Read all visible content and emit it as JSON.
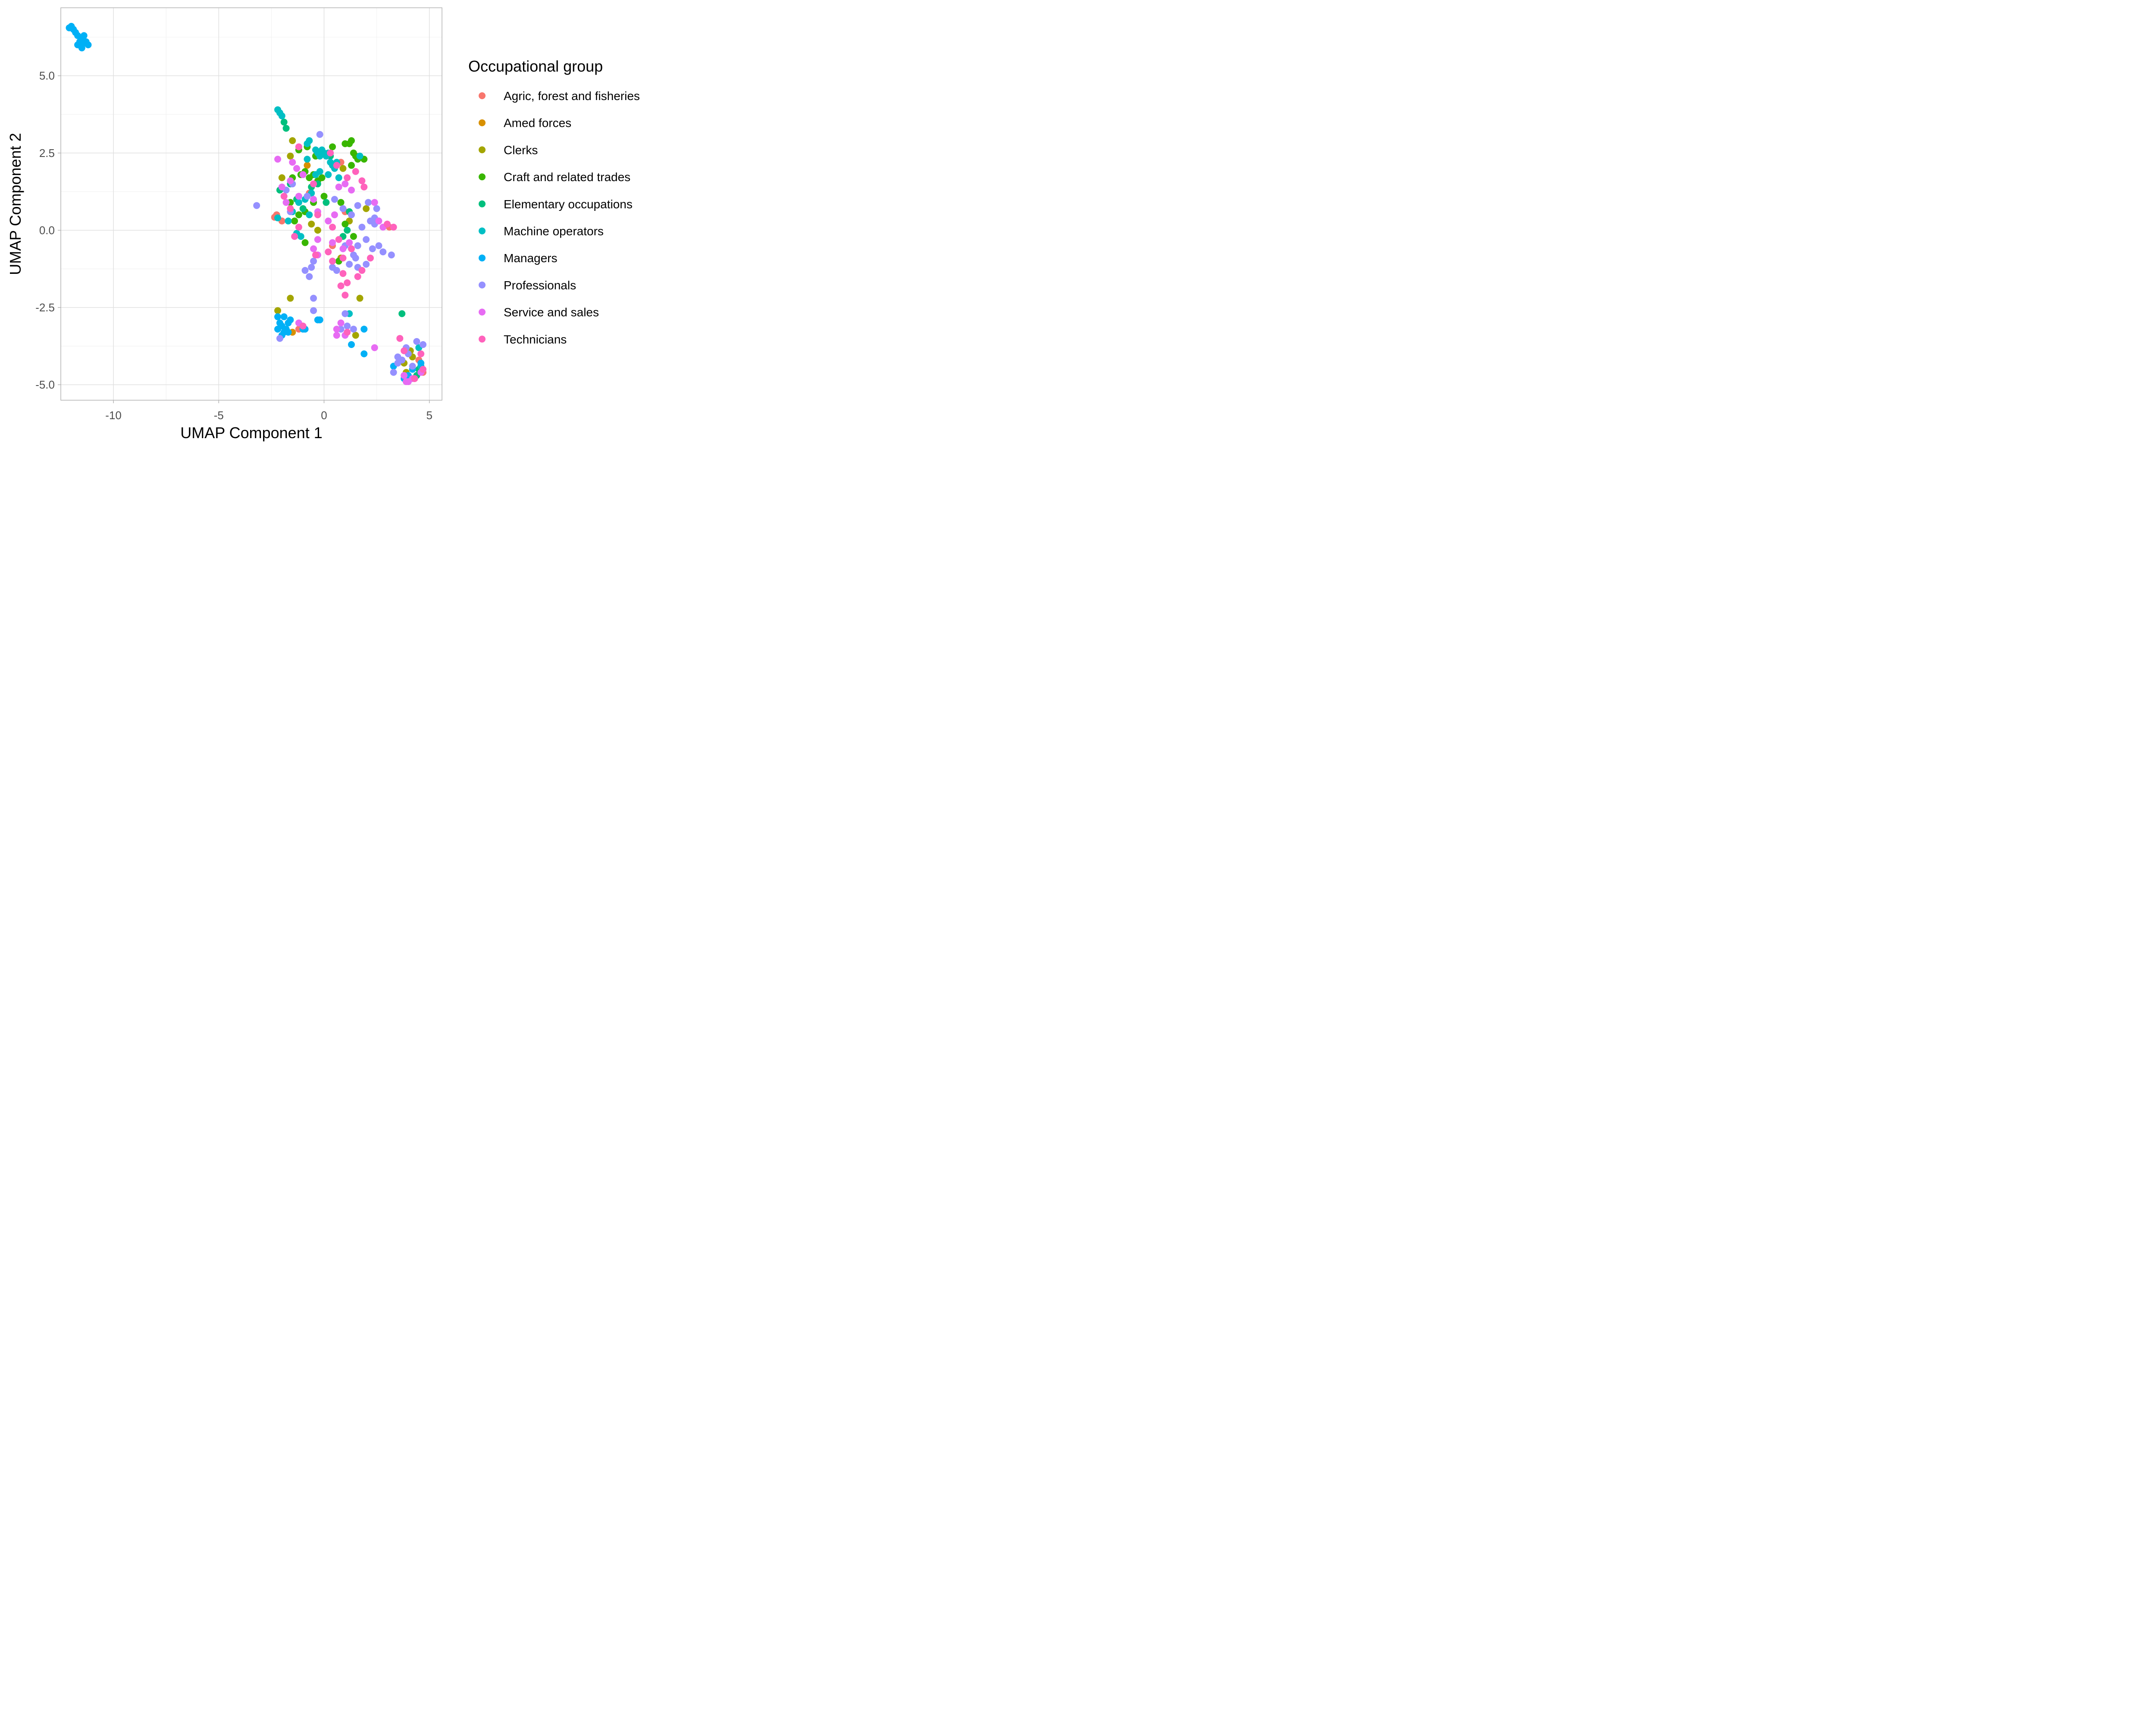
{
  "chart_data": {
    "type": "scatter",
    "xlabel": "UMAP Component 1",
    "ylabel": "UMAP Component 2",
    "xlim": [
      -12.5,
      5.6
    ],
    "ylim": [
      -5.5,
      7.2
    ],
    "x_ticks": [
      -10,
      -5,
      0,
      5
    ],
    "x_tick_labels": [
      "-10",
      "-5",
      "0",
      "5"
    ],
    "y_ticks": [
      -5,
      -2.5,
      0,
      2.5,
      5
    ],
    "y_tick_labels": [
      "-5.0",
      "-2.5",
      "0.0",
      "2.5",
      "5.0"
    ],
    "grid": true,
    "legend": {
      "title": "Occupational group",
      "position": "right"
    },
    "series": [
      {
        "name": "Agric, forest and fisheries",
        "color": "#F8766D",
        "points": [
          [
            -2.3,
            0.45
          ],
          [
            -2.25,
            0.5
          ],
          [
            -2.35,
            0.42
          ],
          [
            -2.0,
            0.3
          ],
          [
            -0.7,
            1.2
          ],
          [
            0.8,
            2.2
          ],
          [
            1.0,
            0.6
          ],
          [
            3.1,
            0.1
          ],
          [
            4.5,
            -4.2
          ],
          [
            4.6,
            -4.4
          ],
          [
            4.7,
            -4.6
          ],
          [
            4.3,
            -4.8
          ],
          [
            0.4,
            -0.5
          ],
          [
            -1.2,
            -3.2
          ]
        ]
      },
      {
        "name": "Amed forces",
        "color": "#D89000",
        "points": [
          [
            -0.8,
            2.1
          ],
          [
            -1.5,
            -3.3
          ]
        ]
      },
      {
        "name": "Clerks",
        "color": "#A3A500",
        "points": [
          [
            -1.5,
            2.9
          ],
          [
            -1.6,
            2.4
          ],
          [
            -2.0,
            1.7
          ],
          [
            -0.3,
            0.0
          ],
          [
            0.9,
            2.0
          ],
          [
            1.2,
            0.3
          ],
          [
            0.8,
            -0.9
          ],
          [
            2.0,
            0.7
          ],
          [
            -1.6,
            -2.2
          ],
          [
            -2.2,
            -2.6
          ],
          [
            1.7,
            -2.2
          ],
          [
            1.5,
            -3.4
          ],
          [
            3.8,
            -4.3
          ],
          [
            4.1,
            -3.9
          ],
          [
            4.2,
            -4.1
          ],
          [
            3.9,
            -4.6
          ],
          [
            -0.6,
            0.2
          ]
        ]
      },
      {
        "name": "Craft and related trades",
        "color": "#39B600",
        "points": [
          [
            -1.2,
            2.6
          ],
          [
            -0.8,
            2.7
          ],
          [
            -0.4,
            2.4
          ],
          [
            0.4,
            2.7
          ],
          [
            1.0,
            2.8
          ],
          [
            1.3,
            2.9
          ],
          [
            1.4,
            2.5
          ],
          [
            1.6,
            2.3
          ],
          [
            1.9,
            2.3
          ],
          [
            1.3,
            2.1
          ],
          [
            -0.9,
            1.9
          ],
          [
            -0.5,
            1.8
          ],
          [
            -0.1,
            1.7
          ],
          [
            -0.3,
            1.6
          ],
          [
            -0.7,
            1.7
          ],
          [
            -1.1,
            1.8
          ],
          [
            -1.5,
            1.7
          ],
          [
            0.0,
            1.1
          ],
          [
            -0.5,
            0.9
          ],
          [
            0.8,
            0.9
          ],
          [
            -1.2,
            0.5
          ],
          [
            -1.4,
            0.3
          ],
          [
            -0.9,
            0.6
          ],
          [
            1.4,
            -0.2
          ],
          [
            -0.9,
            -0.4
          ],
          [
            1.0,
            0.2
          ],
          [
            0.7,
            -1.0
          ],
          [
            -1.6,
            0.9
          ],
          [
            1.2,
            2.8
          ],
          [
            1.5,
            2.4
          ]
        ]
      },
      {
        "name": "Elementary occupations",
        "color": "#00BF7D",
        "points": [
          [
            -1.9,
            3.5
          ],
          [
            -1.8,
            3.3
          ],
          [
            -2.1,
            1.3
          ],
          [
            -1.6,
            1.5
          ],
          [
            -1.3,
            1.0
          ],
          [
            -0.6,
            1.4
          ],
          [
            -0.3,
            1.5
          ],
          [
            0.1,
            0.9
          ],
          [
            -1.0,
            0.7
          ],
          [
            1.2,
            0.6
          ],
          [
            1.1,
            0.0
          ],
          [
            0.9,
            -0.2
          ],
          [
            -0.2,
            2.5
          ],
          [
            0.3,
            2.4
          ],
          [
            3.7,
            -2.7
          ],
          [
            4.5,
            -4.5
          ],
          [
            4.4,
            -4.7
          ]
        ]
      },
      {
        "name": "Machine operators",
        "color": "#00BFC4",
        "points": [
          [
            -2.2,
            3.9
          ],
          [
            -2.1,
            3.8
          ],
          [
            -2.0,
            3.7
          ],
          [
            -0.7,
            2.9
          ],
          [
            -0.8,
            2.8
          ],
          [
            -0.4,
            2.6
          ],
          [
            -0.3,
            2.5
          ],
          [
            -0.2,
            2.4
          ],
          [
            -0.1,
            2.6
          ],
          [
            0.0,
            2.5
          ],
          [
            0.1,
            2.4
          ],
          [
            0.2,
            2.5
          ],
          [
            0.3,
            2.2
          ],
          [
            0.4,
            2.1
          ],
          [
            0.5,
            2.0
          ],
          [
            0.6,
            2.2
          ],
          [
            -0.4,
            1.8
          ],
          [
            -0.2,
            1.9
          ],
          [
            0.2,
            1.8
          ],
          [
            0.7,
            1.7
          ],
          [
            -0.6,
            1.2
          ],
          [
            -0.9,
            1.0
          ],
          [
            -1.2,
            0.9
          ],
          [
            -1.5,
            0.6
          ],
          [
            -1.7,
            0.3
          ],
          [
            -2.2,
            0.4
          ],
          [
            -1.3,
            -0.1
          ],
          [
            -1.1,
            -0.2
          ],
          [
            -0.7,
            0.5
          ],
          [
            1.2,
            -2.7
          ],
          [
            4.5,
            -3.8
          ],
          [
            4.6,
            -4.4
          ],
          [
            1.7,
            2.4
          ],
          [
            -0.8,
            2.3
          ]
        ]
      },
      {
        "name": "Managers",
        "color": "#00B0F6",
        "points": [
          [
            -12.0,
            6.6
          ],
          [
            -11.9,
            6.5
          ],
          [
            -11.8,
            6.4
          ],
          [
            -11.7,
            6.3
          ],
          [
            -11.6,
            6.1
          ],
          [
            -11.5,
            6.0
          ],
          [
            -11.4,
            6.3
          ],
          [
            -11.3,
            6.1
          ],
          [
            -11.2,
            6.0
          ],
          [
            -11.5,
            5.9
          ],
          [
            -11.7,
            6.0
          ],
          [
            -12.1,
            6.55
          ],
          [
            -11.45,
            6.2
          ],
          [
            -2.2,
            -2.8
          ],
          [
            -2.1,
            -3.0
          ],
          [
            -2.0,
            -3.1
          ],
          [
            -1.9,
            -2.8
          ],
          [
            -1.8,
            -3.2
          ],
          [
            -1.7,
            -3.0
          ],
          [
            -1.6,
            -2.9
          ],
          [
            -1.9,
            -3.3
          ],
          [
            -2.2,
            -3.2
          ],
          [
            -2.0,
            -3.4
          ],
          [
            -1.7,
            -3.3
          ],
          [
            -0.9,
            -3.2
          ],
          [
            -1.0,
            -3.2
          ],
          [
            -0.3,
            -2.9
          ],
          [
            -0.2,
            -2.9
          ],
          [
            1.3,
            -3.7
          ],
          [
            1.9,
            -4.0
          ],
          [
            1.9,
            -3.2
          ],
          [
            3.3,
            -4.4
          ],
          [
            3.8,
            -4.8
          ],
          [
            4.0,
            -4.7
          ],
          [
            4.2,
            -4.5
          ],
          [
            4.6,
            -4.3
          ]
        ]
      },
      {
        "name": "Professionals",
        "color": "#9590FF",
        "points": [
          [
            -3.2,
            0.8
          ],
          [
            -0.2,
            3.1
          ],
          [
            -1.5,
            1.5
          ],
          [
            -1.8,
            1.3
          ],
          [
            -1.6,
            0.6
          ],
          [
            -0.8,
            1.1
          ],
          [
            0.5,
            1.0
          ],
          [
            0.9,
            0.7
          ],
          [
            1.3,
            0.5
          ],
          [
            1.6,
            0.8
          ],
          [
            2.1,
            0.9
          ],
          [
            2.5,
            0.7
          ],
          [
            2.4,
            0.4
          ],
          [
            2.2,
            0.3
          ],
          [
            1.8,
            0.1
          ],
          [
            2.0,
            -0.3
          ],
          [
            1.6,
            -0.5
          ],
          [
            1.4,
            -0.8
          ],
          [
            1.2,
            -1.1
          ],
          [
            1.6,
            -1.2
          ],
          [
            2.0,
            -1.1
          ],
          [
            2.3,
            -0.6
          ],
          [
            2.6,
            -0.5
          ],
          [
            2.8,
            -0.7
          ],
          [
            3.2,
            -0.8
          ],
          [
            1.0,
            -0.5
          ],
          [
            0.6,
            -1.3
          ],
          [
            0.4,
            -1.2
          ],
          [
            -0.7,
            -1.5
          ],
          [
            -0.9,
            -1.3
          ],
          [
            -0.6,
            -1.2
          ],
          [
            -0.5,
            -1.0
          ],
          [
            -0.5,
            -2.2
          ],
          [
            -0.5,
            -2.6
          ],
          [
            -2.1,
            -3.5
          ],
          [
            1.0,
            -2.7
          ],
          [
            1.1,
            -3.1
          ],
          [
            0.8,
            -3.2
          ],
          [
            1.4,
            -3.2
          ],
          [
            3.5,
            -4.1
          ],
          [
            3.7,
            -4.2
          ],
          [
            4.0,
            -4.0
          ],
          [
            4.4,
            -3.6
          ],
          [
            4.7,
            -3.7
          ],
          [
            4.2,
            -4.4
          ],
          [
            3.9,
            -3.8
          ],
          [
            3.5,
            -4.3
          ],
          [
            3.3,
            -4.6
          ],
          [
            1.5,
            -0.9
          ],
          [
            2.4,
            0.2
          ]
        ]
      },
      {
        "name": "Service and sales",
        "color": "#E76BF3",
        "points": [
          [
            -2.2,
            2.3
          ],
          [
            -1.5,
            2.2
          ],
          [
            -1.3,
            2.0
          ],
          [
            -1.0,
            1.8
          ],
          [
            -1.6,
            1.6
          ],
          [
            -2.0,
            1.4
          ],
          [
            -1.2,
            1.1
          ],
          [
            -1.8,
            0.9
          ],
          [
            -0.5,
            1.0
          ],
          [
            0.7,
            1.4
          ],
          [
            1.0,
            1.5
          ],
          [
            1.3,
            1.3
          ],
          [
            0.5,
            0.5
          ],
          [
            0.2,
            0.3
          ],
          [
            -0.3,
            -0.3
          ],
          [
            -0.5,
            -0.6
          ],
          [
            -0.3,
            -0.8
          ],
          [
            0.4,
            -0.4
          ],
          [
            0.9,
            -0.6
          ],
          [
            1.2,
            -0.4
          ],
          [
            2.4,
            0.9
          ],
          [
            2.6,
            0.3
          ],
          [
            2.8,
            0.1
          ],
          [
            -1.2,
            -3.0
          ],
          [
            0.6,
            -3.2
          ],
          [
            0.8,
            -3.0
          ],
          [
            0.6,
            -3.4
          ],
          [
            1.0,
            -3.4
          ],
          [
            3.8,
            -4.7
          ],
          [
            4.0,
            -4.9
          ],
          [
            4.2,
            -4.8
          ],
          [
            3.9,
            -4.9
          ],
          [
            4.6,
            -4.6
          ],
          [
            2.4,
            -3.8
          ],
          [
            -0.3,
            0.6
          ]
        ]
      },
      {
        "name": "Technicians",
        "color": "#FF62BC",
        "points": [
          [
            -1.2,
            2.7
          ],
          [
            0.3,
            2.5
          ],
          [
            0.6,
            2.1
          ],
          [
            1.5,
            1.9
          ],
          [
            1.8,
            1.6
          ],
          [
            1.1,
            1.7
          ],
          [
            -0.5,
            1.5
          ],
          [
            -1.9,
            1.1
          ],
          [
            -1.6,
            0.7
          ],
          [
            -0.3,
            0.5
          ],
          [
            0.4,
            0.1
          ],
          [
            0.7,
            -0.3
          ],
          [
            1.3,
            -0.6
          ],
          [
            0.9,
            -0.9
          ],
          [
            0.4,
            -1.0
          ],
          [
            0.9,
            -1.4
          ],
          [
            1.6,
            -1.5
          ],
          [
            1.8,
            -1.3
          ],
          [
            2.2,
            -0.9
          ],
          [
            1.1,
            -1.7
          ],
          [
            1.0,
            -2.1
          ],
          [
            0.8,
            -1.8
          ],
          [
            -0.4,
            -0.8
          ],
          [
            -1.4,
            -0.2
          ],
          [
            -1.2,
            0.1
          ],
          [
            3.0,
            0.2
          ],
          [
            3.3,
            0.1
          ],
          [
            1.9,
            1.4
          ],
          [
            3.6,
            -3.5
          ],
          [
            3.8,
            -3.9
          ],
          [
            4.3,
            -4.8
          ],
          [
            4.6,
            -4.0
          ],
          [
            4.7,
            -4.5
          ],
          [
            0.2,
            -0.7
          ],
          [
            1.1,
            -3.3
          ],
          [
            -1.0,
            -3.1
          ]
        ]
      }
    ]
  }
}
